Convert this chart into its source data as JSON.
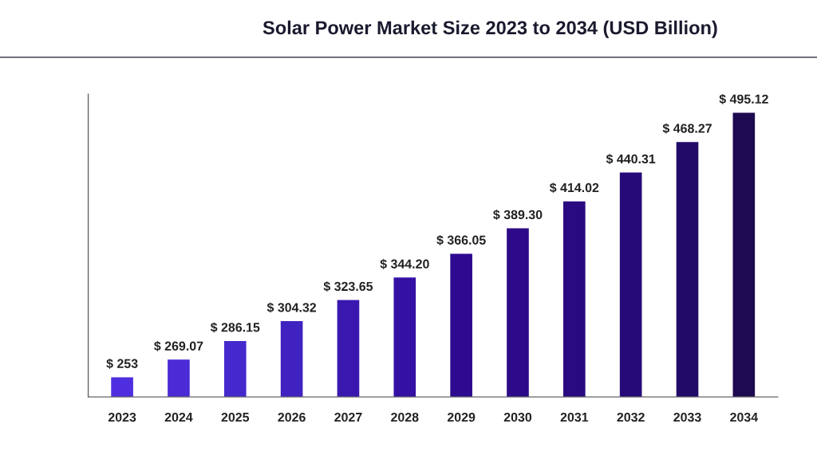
{
  "chart_data": {
    "type": "bar",
    "title": "Solar Power Market Size 2023 to 2034 (USD Billion)",
    "categories": [
      "2023",
      "2024",
      "2025",
      "2026",
      "2027",
      "2028",
      "2029",
      "2030",
      "2031",
      "2032",
      "2033",
      "2034"
    ],
    "values": [
      253,
      269.07,
      286.15,
      304.32,
      323.65,
      344.2,
      366.05,
      389.3,
      414.02,
      440.31,
      468.27,
      495.12
    ],
    "value_labels": [
      "$ 253",
      "$ 269.07",
      "$ 286.15",
      "$ 304.32",
      "$ 323.65",
      "$ 344.20",
      "$ 366.05",
      "$ 389.30",
      "$ 414.02",
      "$ 440.31",
      "$ 468.27",
      "$ 495.12"
    ],
    "colors": [
      "#4f2ee0",
      "#4a2bd6",
      "#4529cc",
      "#3f22c0",
      "#3a18b0",
      "#3510a5",
      "#2e0a90",
      "#2c0a88",
      "#2a0a80",
      "#260a78",
      "#220a68",
      "#1e0a50"
    ],
    "ylim": [
      235,
      512
    ],
    "tick_labels": "x",
    "grid": false,
    "legend": false
  }
}
